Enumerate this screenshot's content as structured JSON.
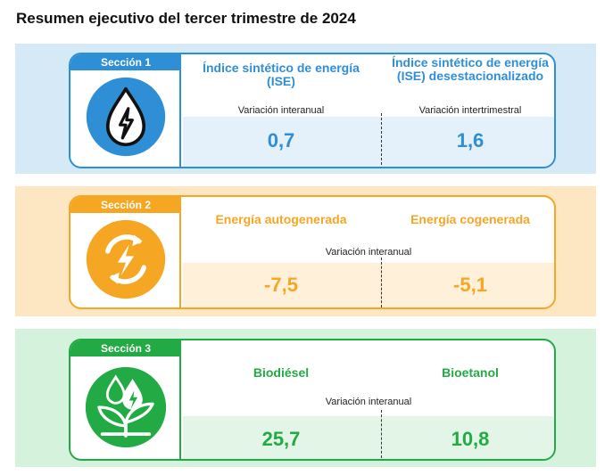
{
  "title": "Resumen ejecutivo del tercer trimestre de 2024",
  "sections": [
    {
      "label": "Sección 1",
      "icon": "water-drop-bolt-icon",
      "color": "#2e8fd6",
      "metrics": [
        {
          "title": "Índice sintético de energía (ISE)",
          "sub": "Variación interanual",
          "value": "0,7"
        },
        {
          "title": "Índice sintético de energía (ISE) desestacionalizado",
          "sub": "Variación intertrimestral",
          "value": "1,6"
        }
      ]
    },
    {
      "label": "Sección 2",
      "icon": "circular-bolt-icon",
      "color": "#f5a623",
      "sub": "Variación interanual",
      "metrics": [
        {
          "title": "Energía autogenerada",
          "value": "-7,5"
        },
        {
          "title": "Energía cogenerada",
          "value": "-5,1"
        }
      ]
    },
    {
      "label": "Sección 3",
      "icon": "drops-leaves-icon",
      "color": "#22aa44",
      "sub": "Variación interanual",
      "metrics": [
        {
          "title": "Biodiésel",
          "value": "25,7"
        },
        {
          "title": "Bioetanol",
          "value": "10,8"
        }
      ]
    }
  ]
}
